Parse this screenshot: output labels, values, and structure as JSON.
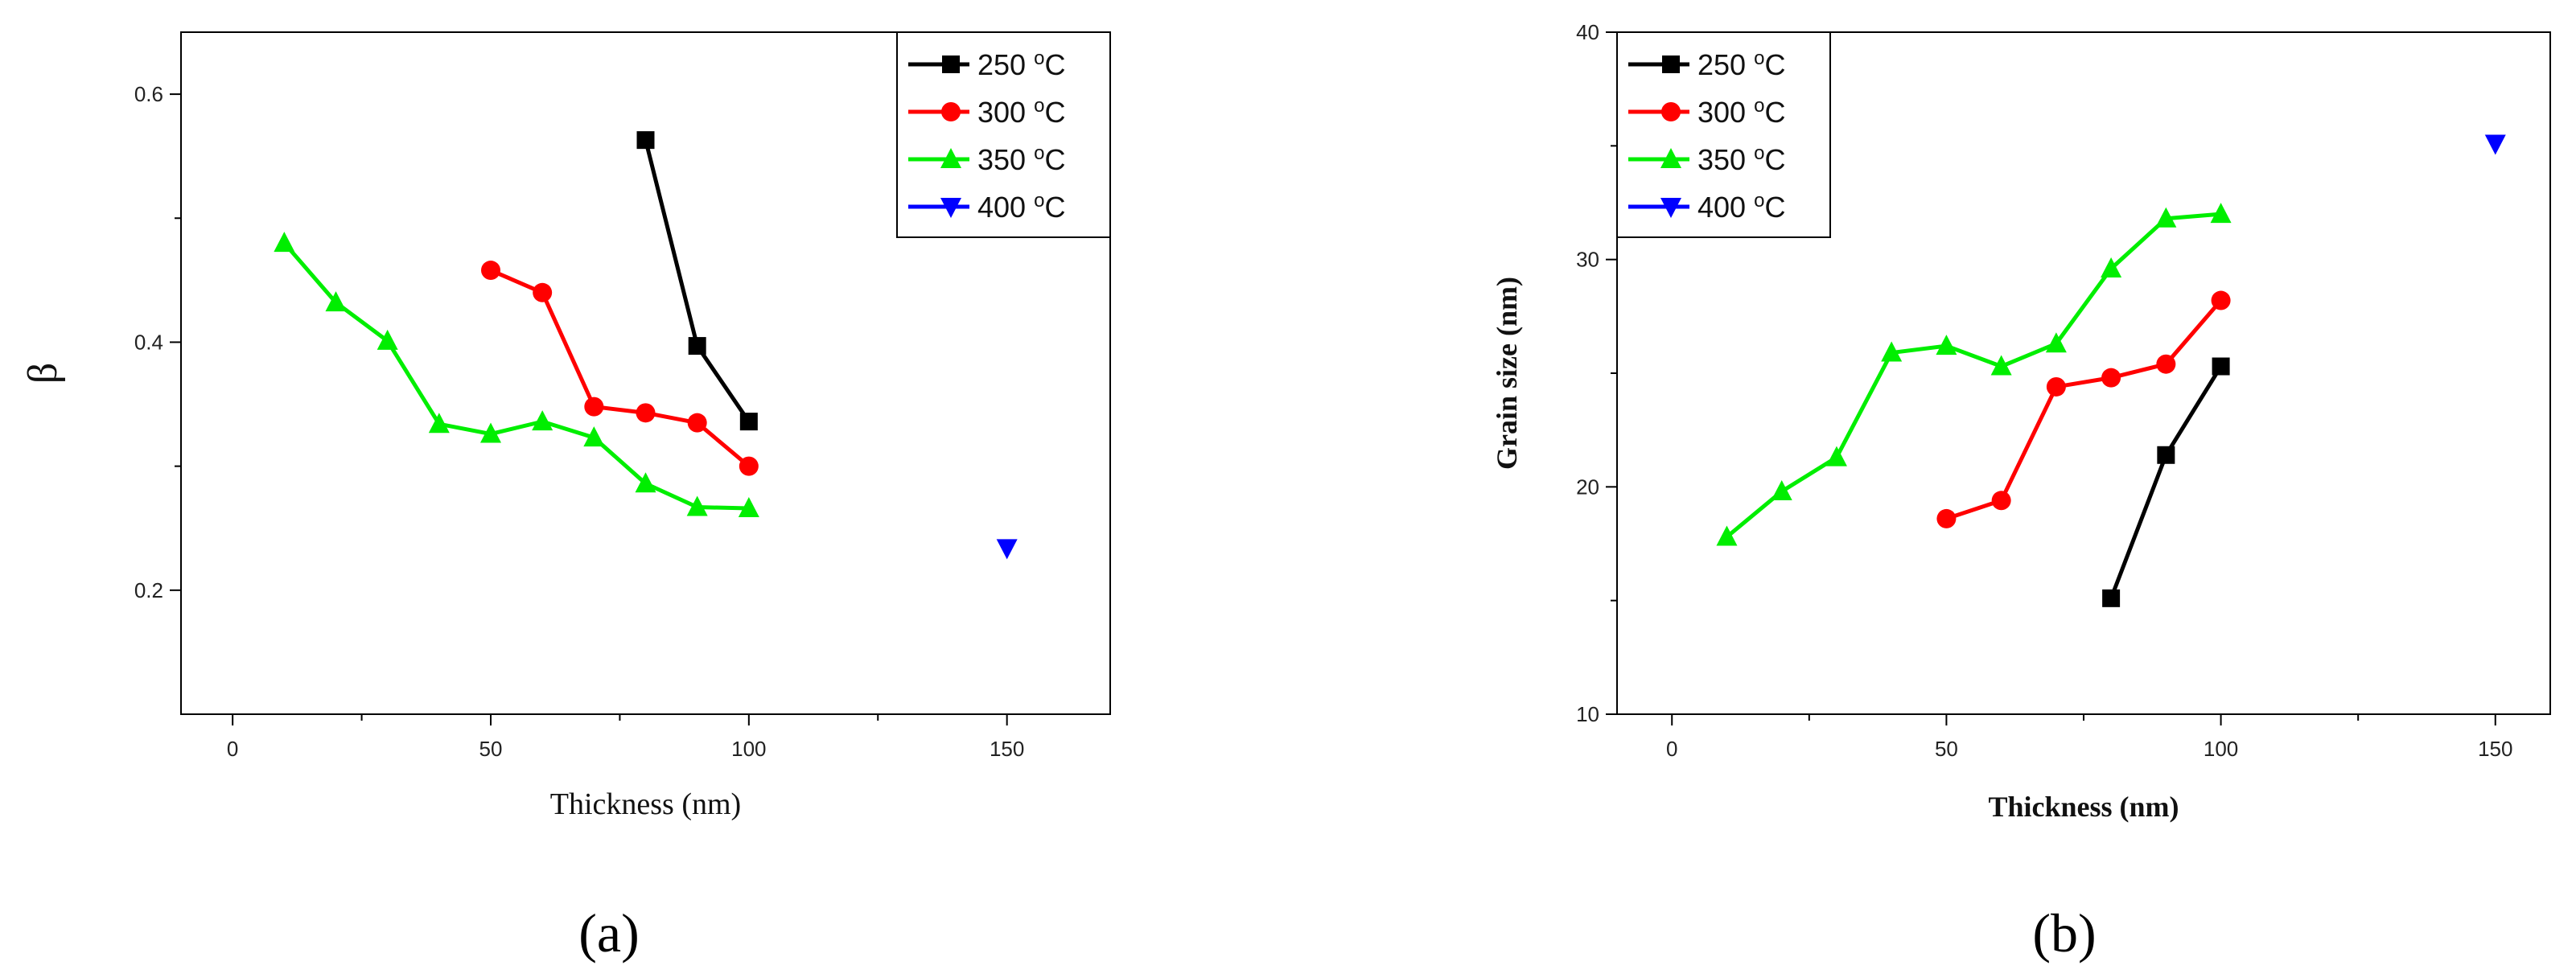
{
  "chart_data": [
    {
      "type": "line",
      "panel_label": "a",
      "xlabel": "Thickness (nm)",
      "ylabel": "β",
      "xlim": [
        -10,
        170
      ],
      "ylim": [
        0.1,
        0.65
      ],
      "xticks": [
        "0",
        "50",
        "100",
        "150"
      ],
      "yticks": [
        "0.2",
        "0.4",
        "0.6"
      ],
      "legend_position": "top-right",
      "series": [
        {
          "name": "250 °C",
          "color": "#000000",
          "marker": "square",
          "x": [
            80,
            90,
            100
          ],
          "y": [
            0.563,
            0.397,
            0.336
          ]
        },
        {
          "name": "300 °C",
          "color": "#ff0000",
          "marker": "circle",
          "x": [
            50,
            60,
            70,
            80,
            90,
            100
          ],
          "y": [
            0.458,
            0.44,
            0.348,
            0.343,
            0.335,
            0.3
          ]
        },
        {
          "name": "350 °C",
          "color": "#00ee00",
          "marker": "triangle-up",
          "x": [
            10,
            20,
            30,
            40,
            50,
            60,
            70,
            80,
            90,
            100
          ],
          "y": [
            0.48,
            0.432,
            0.401,
            0.334,
            0.326,
            0.336,
            0.323,
            0.286,
            0.267,
            0.266
          ]
        },
        {
          "name": "400 °C",
          "color": "#0000ff",
          "marker": "triangle-down",
          "x": [
            150
          ],
          "y": [
            0.234
          ]
        }
      ]
    },
    {
      "type": "line",
      "panel_label": "b",
      "xlabel": "Thickness (nm)",
      "ylabel": "Grain size (nm)",
      "xlim": [
        -10,
        160
      ],
      "ylim": [
        10,
        40
      ],
      "xticks": [
        "0",
        "50",
        "100",
        "150"
      ],
      "yticks": [
        "10",
        "20",
        "30",
        "40"
      ],
      "legend_position": "top-left",
      "series": [
        {
          "name": "250 °C",
          "color": "#000000",
          "marker": "square",
          "x": [
            80,
            90,
            100
          ],
          "y": [
            15.1,
            21.4,
            25.3
          ]
        },
        {
          "name": "300 °C",
          "color": "#ff0000",
          "marker": "circle",
          "x": [
            50,
            60,
            70,
            80,
            90,
            100
          ],
          "y": [
            18.6,
            19.4,
            24.4,
            24.8,
            25.4,
            28.2
          ]
        },
        {
          "name": "350 °C",
          "color": "#00ee00",
          "marker": "triangle-up",
          "x": [
            10,
            20,
            30,
            40,
            50,
            60,
            70,
            80,
            90,
            100
          ],
          "y": [
            17.8,
            19.8,
            21.3,
            25.9,
            26.2,
            25.3,
            26.3,
            29.6,
            31.8,
            32.0
          ]
        },
        {
          "name": "400 °C",
          "color": "#0000ff",
          "marker": "triangle-down",
          "x": [
            150
          ],
          "y": [
            35.1
          ]
        }
      ]
    }
  ]
}
